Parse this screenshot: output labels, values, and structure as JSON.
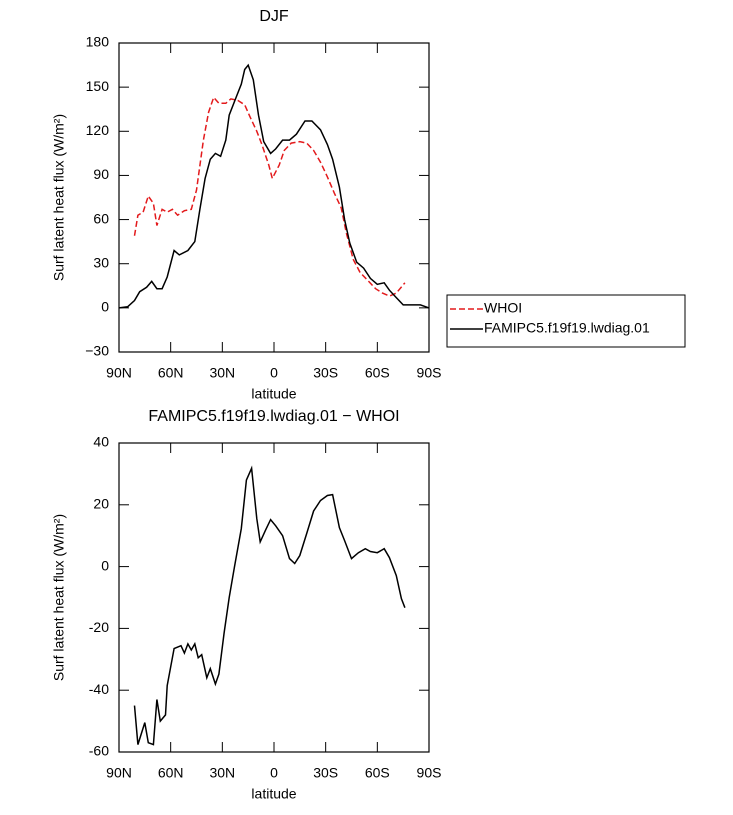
{
  "chart_data": [
    {
      "type": "line",
      "title": "DJF",
      "xlabel": "latitude",
      "ylabel": "Surf latent heat flux (W/m²)",
      "xlim": [
        90,
        -90
      ],
      "xticks": [
        {
          "value": 90,
          "label": "90N"
        },
        {
          "value": 60,
          "label": "60N"
        },
        {
          "value": 30,
          "label": "30N"
        },
        0,
        {
          "value": -30,
          "label": "30S"
        },
        {
          "value": -60,
          "label": "60S"
        },
        {
          "value": -90,
          "label": "90S"
        }
      ],
      "ylim": [
        -30,
        180
      ],
      "yticks": [
        {
          "value": -30,
          "label": "−30"
        },
        0,
        30,
        60,
        90,
        120,
        150,
        180
      ],
      "legend": "outside-right",
      "series": [
        {
          "name": "WHOI",
          "color": "#e31a1c",
          "dash": "dashed",
          "x": [
            81,
            79,
            76,
            73,
            70,
            68,
            65,
            62,
            59,
            56,
            52,
            48,
            45,
            41,
            38,
            35,
            32,
            28,
            25,
            21,
            17,
            14,
            10,
            7,
            3,
            1,
            -3,
            -6,
            -10,
            -15,
            -19,
            -23,
            -27,
            -31,
            -35,
            -39,
            -42,
            -46,
            -50,
            -55,
            -59,
            -63,
            -67,
            -71,
            -76
          ],
          "values": [
            49,
            63,
            65,
            76,
            71,
            56,
            67,
            65,
            67,
            63,
            66,
            67,
            80,
            114,
            133,
            143,
            139,
            139,
            142,
            141,
            138,
            130,
            120,
            111,
            97,
            88,
            97,
            107,
            112,
            113,
            112,
            107,
            99,
            89,
            78,
            68,
            51,
            33,
            24,
            18,
            13,
            10,
            8,
            10,
            17
          ]
        },
        {
          "name": "FAMIPC5.f19f19.lwdiag.01",
          "color": "#000000",
          "dash": "solid",
          "x": [
            90,
            85,
            81,
            78,
            74,
            71,
            68,
            65,
            62,
            58,
            55,
            50,
            46,
            43,
            40,
            37,
            34,
            31,
            28,
            26,
            22,
            19,
            17,
            15,
            12,
            9,
            6,
            2,
            -1,
            -5,
            -9,
            -13,
            -18,
            -22,
            -27,
            -31,
            -34,
            -38,
            -41,
            -44,
            -48,
            -52,
            -56,
            -60,
            -64,
            -67,
            -71,
            -75,
            -80,
            -85,
            -90
          ],
          "values": [
            0,
            0.7,
            5,
            11,
            14,
            18,
            13,
            13,
            21,
            39,
            36,
            39,
            45,
            67,
            88,
            101,
            105,
            103,
            114,
            131,
            143,
            152,
            162,
            165,
            155,
            131,
            113,
            105,
            108,
            114,
            114,
            118,
            127,
            127,
            121,
            111,
            101,
            82,
            60,
            44,
            31,
            27,
            20,
            16,
            17,
            12,
            7,
            2,
            2,
            2,
            0
          ]
        }
      ]
    },
    {
      "type": "line",
      "title": "FAMIPC5.f19f19.lwdiag.01 − WHOI",
      "xlabel": "latitude",
      "ylabel": "Surf latent heat flux (W/m²)",
      "xlim": [
        90,
        -90
      ],
      "xticks": [
        {
          "value": 90,
          "label": "90N"
        },
        {
          "value": 60,
          "label": "60N"
        },
        {
          "value": 30,
          "label": "30N"
        },
        0,
        {
          "value": -30,
          "label": "30S"
        },
        {
          "value": -60,
          "label": "60S"
        },
        {
          "value": -90,
          "label": "90S"
        }
      ],
      "ylim": [
        -60,
        40
      ],
      "yticks": [
        -60,
        -40,
        -20,
        0,
        20,
        40
      ],
      "series": [
        {
          "color": "#000000",
          "dash": "solid",
          "x": [
            81,
            79,
            75,
            73,
            70,
            68,
            66,
            63,
            62,
            58,
            54,
            52,
            50,
            48,
            46,
            44,
            42,
            39,
            37,
            34,
            32,
            29,
            26,
            23,
            19,
            16,
            13,
            10,
            8,
            5,
            2,
            -1,
            -5,
            -9,
            -12,
            -15,
            -19,
            -23,
            -27,
            -31,
            -34,
            -38,
            -41,
            -45,
            -49,
            -53,
            -56,
            -60,
            -64,
            -67,
            -71,
            -74,
            -76
          ],
          "values": [
            -45,
            -57.6,
            -50.5,
            -57,
            -57.6,
            -43,
            -50,
            -48,
            -38.5,
            -26.5,
            -25.6,
            -28,
            -25,
            -27,
            -25,
            -29.5,
            -28.5,
            -36,
            -33,
            -38,
            -34.8,
            -21.5,
            -10,
            -0.2,
            12.3,
            28,
            31.8,
            15.5,
            8,
            11.7,
            15.2,
            13.2,
            10,
            2.6,
            1,
            3.6,
            10.7,
            18,
            21.4,
            23,
            23.3,
            12.6,
            8.4,
            2.6,
            4.5,
            5.8,
            4.9,
            4.5,
            5.8,
            2.9,
            -2.9,
            -10.4,
            -13.3
          ]
        }
      ]
    }
  ]
}
